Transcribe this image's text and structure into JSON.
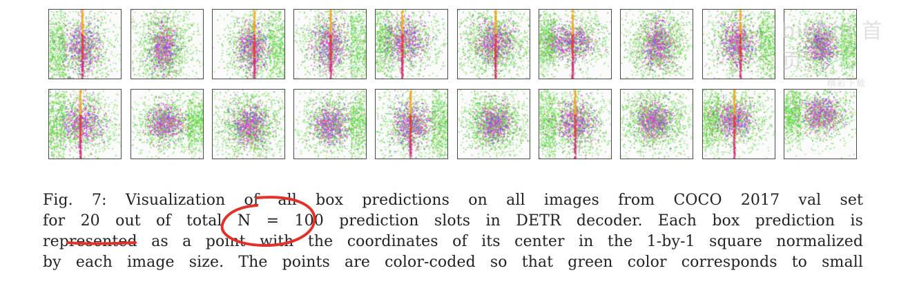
{
  "figure": {
    "rows": 2,
    "cols": 10,
    "color_meaning": "green = small box, red/purple = large box"
  },
  "caption_lines": [
    "Fig. 7: Visualization of all box predictions on all images from COCO 2017 val set",
    "for 20 out of total N = 100 prediction slots in DETR decoder. Each box prediction is",
    "represented as a point with the coordinates of its center in the 1-by-1 square normalized",
    "by each image size. The points are color-coded so that green color corresponds to small"
  ],
  "annotation_color": "#e0312a",
  "watermark": {
    "main": "bilibili 首页",
    "sub": "精彩下载"
  }
}
